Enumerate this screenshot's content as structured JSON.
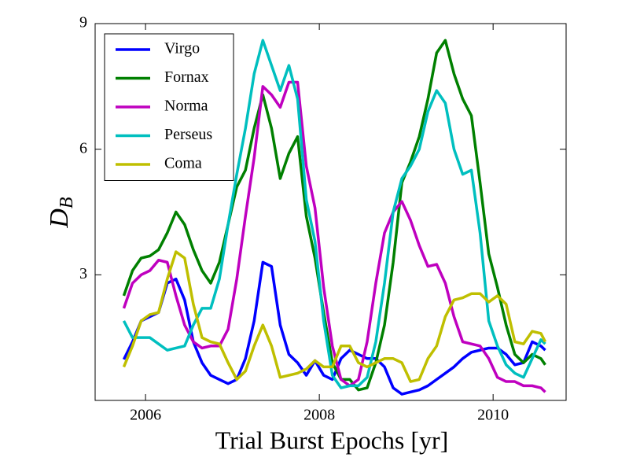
{
  "chart_data": {
    "type": "line",
    "xlabel": "Trial Burst Epochs [yr]",
    "ylabel": {
      "text": "D",
      "subscript": "B"
    },
    "xlim": [
      2005.42,
      2010.84
    ],
    "ylim": [
      0,
      9
    ],
    "xticks": [
      2006,
      2008,
      2010
    ],
    "yticks": [
      3,
      6,
      9
    ],
    "legend": "upper left",
    "x": [
      2005.75,
      2005.85,
      2005.95,
      2006.05,
      2006.15,
      2006.25,
      2006.35,
      2006.45,
      2006.55,
      2006.65,
      2006.75,
      2006.85,
      2006.95,
      2007.05,
      2007.15,
      2007.25,
      2007.35,
      2007.45,
      2007.55,
      2007.65,
      2007.75,
      2007.85,
      2007.95,
      2008.05,
      2008.15,
      2008.25,
      2008.35,
      2008.45,
      2008.55,
      2008.65,
      2008.75,
      2008.85,
      2008.95,
      2009.05,
      2009.15,
      2009.25,
      2009.35,
      2009.45,
      2009.55,
      2009.65,
      2009.75,
      2009.85,
      2009.95,
      2010.05,
      2010.15,
      2010.25,
      2010.35,
      2010.45,
      2010.55,
      2010.6
    ],
    "series": [
      {
        "name": "Virgo",
        "color": "#0000ff",
        "values": [
          0.98,
          1.4,
          1.9,
          2.0,
          2.1,
          2.8,
          2.9,
          2.4,
          1.4,
          0.9,
          0.6,
          0.5,
          0.4,
          0.5,
          1.0,
          1.9,
          3.3,
          3.2,
          1.8,
          1.1,
          0.9,
          0.6,
          0.95,
          0.6,
          0.5,
          1.0,
          1.2,
          1.1,
          1.0,
          1.0,
          0.8,
          0.3,
          0.15,
          0.2,
          0.25,
          0.35,
          0.5,
          0.65,
          0.8,
          1.0,
          1.15,
          1.2,
          1.25,
          1.25,
          1.1,
          0.85,
          0.9,
          1.4,
          1.3,
          1.2
        ]
      },
      {
        "name": "Fornax",
        "color": "#008000",
        "values": [
          2.5,
          3.1,
          3.4,
          3.45,
          3.6,
          4.0,
          4.5,
          4.2,
          3.6,
          3.1,
          2.8,
          3.3,
          4.2,
          5.1,
          5.5,
          6.5,
          7.3,
          6.5,
          5.3,
          5.9,
          6.3,
          4.4,
          3.4,
          2.1,
          0.9,
          0.5,
          0.5,
          0.25,
          0.3,
          0.9,
          1.8,
          3.3,
          5.2,
          5.7,
          6.3,
          7.2,
          8.3,
          8.6,
          7.8,
          7.2,
          6.8,
          5.2,
          3.5,
          2.7,
          1.8,
          1.1,
          0.9,
          1.1,
          1.0,
          0.85
        ]
      },
      {
        "name": "Norma",
        "color": "#bf00bf",
        "values": [
          2.2,
          2.8,
          3.0,
          3.1,
          3.35,
          3.3,
          2.5,
          1.8,
          1.4,
          1.25,
          1.3,
          1.3,
          1.7,
          2.9,
          4.4,
          5.8,
          7.5,
          7.3,
          7.0,
          7.6,
          7.6,
          5.6,
          4.6,
          2.7,
          1.3,
          0.5,
          0.35,
          0.5,
          1.4,
          2.8,
          4.0,
          4.5,
          4.75,
          4.3,
          3.7,
          3.2,
          3.25,
          2.8,
          2.0,
          1.4,
          1.35,
          1.3,
          1.0,
          0.55,
          0.45,
          0.45,
          0.35,
          0.35,
          0.3,
          0.2
        ]
      },
      {
        "name": "Perseus",
        "color": "#00bfbf",
        "values": [
          1.9,
          1.5,
          1.5,
          1.5,
          1.35,
          1.2,
          1.25,
          1.3,
          1.8,
          2.2,
          2.2,
          2.9,
          4.2,
          5.4,
          6.5,
          7.8,
          8.6,
          8.0,
          7.4,
          8.0,
          7.2,
          4.8,
          3.8,
          1.9,
          0.6,
          0.3,
          0.35,
          0.35,
          0.55,
          1.4,
          2.8,
          4.5,
          5.3,
          5.6,
          6.0,
          6.9,
          7.4,
          7.1,
          6.0,
          5.4,
          5.5,
          4.0,
          1.9,
          1.3,
          0.85,
          0.65,
          0.55,
          1.0,
          1.45,
          1.35
        ]
      },
      {
        "name": "Coma",
        "color": "#bfbf00",
        "values": [
          0.8,
          1.3,
          1.9,
          2.05,
          2.1,
          2.9,
          3.55,
          3.4,
          2.3,
          1.5,
          1.4,
          1.35,
          0.9,
          0.5,
          0.7,
          1.3,
          1.8,
          1.3,
          0.55,
          0.6,
          0.65,
          0.75,
          0.95,
          0.8,
          0.8,
          1.3,
          1.3,
          0.9,
          0.8,
          0.9,
          1.0,
          1.0,
          0.9,
          0.45,
          0.5,
          1.0,
          1.3,
          2.0,
          2.4,
          2.45,
          2.55,
          2.55,
          2.35,
          2.5,
          2.3,
          1.4,
          1.35,
          1.65,
          1.6,
          1.4
        ]
      }
    ]
  }
}
